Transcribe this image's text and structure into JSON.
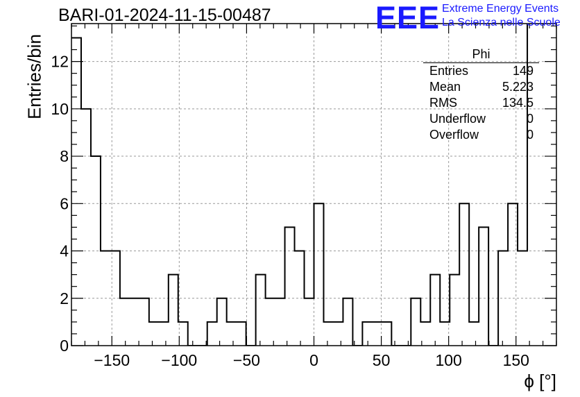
{
  "title": "BARI-01-2024-11-15-00487",
  "logo": {
    "text": "EEE",
    "line1": "Extreme Energy Events",
    "line2": "La Scienza nelle Scuole",
    "color": "#1a1aff"
  },
  "stats_box": {
    "title": "Phi",
    "rows": [
      {
        "label": "Entries",
        "value": "149"
      },
      {
        "label": "Mean",
        "value": "5.223"
      },
      {
        "label": "RMS",
        "value": "134.5"
      },
      {
        "label": "Underflow",
        "value": "0"
      },
      {
        "label": "Overflow",
        "value": "0"
      }
    ]
  },
  "chart_data": {
    "type": "histogram",
    "title": "BARI-01-2024-11-15-00487",
    "xlabel": "ϕ [°]",
    "ylabel": "Entries/bin",
    "xlim": [
      -180,
      180
    ],
    "ylim": [
      0,
      13.6
    ],
    "bin_width": 7.2,
    "bin_start": -180,
    "counts": [
      13,
      10,
      8,
      4,
      4,
      2,
      2,
      2,
      1,
      1,
      3,
      1,
      0,
      0,
      1,
      2,
      1,
      1,
      0,
      3,
      2,
      2,
      5,
      4,
      2,
      6,
      1,
      1,
      2,
      0,
      1,
      1,
      1,
      0,
      0,
      2,
      1,
      3,
      1,
      3,
      6,
      1,
      5,
      0,
      4,
      6,
      4,
      14
    ],
    "xticks": [
      -150,
      -100,
      -50,
      0,
      50,
      100,
      150
    ],
    "xtick_labels": [
      "−150",
      "−100",
      "−50",
      "0",
      "50",
      "100",
      "150"
    ],
    "yticks": [
      0,
      2,
      4,
      6,
      8,
      10,
      12
    ],
    "ytick_labels": [
      "0",
      "2",
      "4",
      "6",
      "8",
      "10",
      "12"
    ],
    "grid": true,
    "line_color": "#000000"
  }
}
